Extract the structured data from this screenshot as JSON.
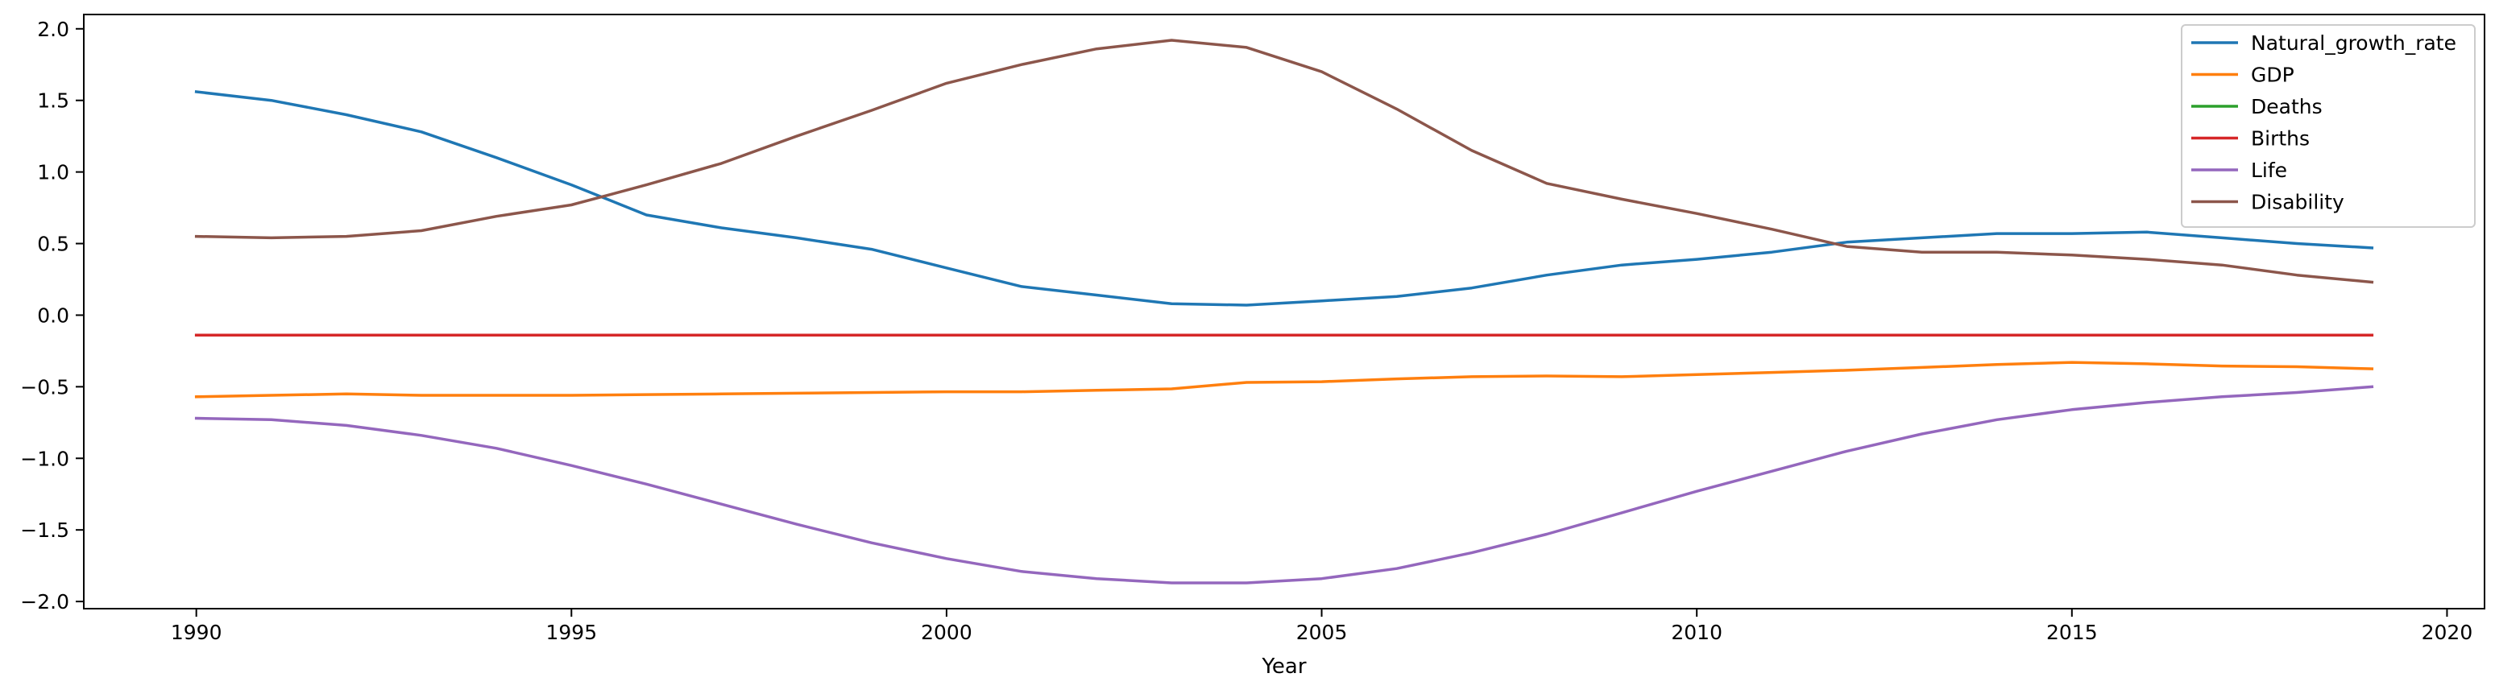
{
  "chart_data": {
    "type": "line",
    "title": "",
    "xlabel": "Year",
    "ylabel": "",
    "xlim": [
      1988.5,
      2020.5
    ],
    "ylim": [
      -2.05,
      2.1
    ],
    "xticks": [
      1990,
      1995,
      2000,
      2005,
      2010,
      2015,
      2020
    ],
    "xtick_labels": [
      "1990",
      "1995",
      "2000",
      "2005",
      "2010",
      "2015",
      "2020"
    ],
    "yticks": [
      -2.0,
      -1.5,
      -1.0,
      -0.5,
      0.0,
      0.5,
      1.0,
      1.5,
      2.0
    ],
    "ytick_labels": [
      "−2.0",
      "−1.5",
      "−1.0",
      "−0.5",
      "0.0",
      "0.5",
      "1.0",
      "1.5",
      "2.0"
    ],
    "grid": false,
    "legend_position": "top-right",
    "x": [
      1990,
      1991,
      1992,
      1993,
      1994,
      1995,
      1996,
      1997,
      1998,
      1999,
      2000,
      2001,
      2002,
      2003,
      2004,
      2005,
      2006,
      2007,
      2008,
      2009,
      2010,
      2011,
      2012,
      2013,
      2014,
      2015,
      2016,
      2017,
      2018,
      2019
    ],
    "series": [
      {
        "name": "Natural_growth_rate",
        "color": "#1f77b4",
        "values": [
          1.56,
          1.5,
          1.4,
          1.28,
          1.1,
          0.91,
          0.7,
          0.61,
          0.54,
          0.46,
          0.33,
          0.2,
          0.14,
          0.08,
          0.07,
          0.1,
          0.13,
          0.19,
          0.28,
          0.35,
          0.39,
          0.44,
          0.51,
          0.54,
          0.57,
          0.57,
          0.58,
          0.54,
          0.5,
          0.47
        ]
      },
      {
        "name": "GDP",
        "color": "#ff7f0e",
        "values": [
          -0.57,
          -0.56,
          -0.55,
          -0.56,
          -0.56,
          -0.56,
          -0.555,
          -0.55,
          -0.545,
          -0.54,
          -0.535,
          -0.535,
          -0.525,
          -0.515,
          -0.47,
          -0.465,
          -0.445,
          -0.43,
          -0.425,
          -0.43,
          -0.415,
          -0.4,
          -0.385,
          -0.365,
          -0.345,
          -0.33,
          -0.34,
          -0.355,
          -0.36,
          -0.375
        ]
      },
      {
        "name": "Deaths",
        "color": "#2ca02c",
        "values": [
          -0.14,
          -0.14,
          -0.14,
          -0.14,
          -0.14,
          -0.14,
          -0.14,
          -0.14,
          -0.14,
          -0.14,
          -0.14,
          -0.14,
          -0.14,
          -0.14,
          -0.14,
          -0.14,
          -0.14,
          -0.14,
          -0.14,
          -0.14,
          -0.14,
          -0.14,
          -0.14,
          -0.14,
          -0.14,
          -0.14,
          -0.14,
          -0.14,
          -0.14,
          -0.14
        ]
      },
      {
        "name": "Births",
        "color": "#d62728",
        "values": [
          -0.14,
          -0.14,
          -0.14,
          -0.14,
          -0.14,
          -0.14,
          -0.14,
          -0.14,
          -0.14,
          -0.14,
          -0.14,
          -0.14,
          -0.14,
          -0.14,
          -0.14,
          -0.14,
          -0.14,
          -0.14,
          -0.14,
          -0.14,
          -0.14,
          -0.14,
          -0.14,
          -0.14,
          -0.14,
          -0.14,
          -0.14,
          -0.14,
          -0.14,
          -0.14
        ]
      },
      {
        "name": "Life",
        "color": "#9467bd",
        "values": [
          -0.72,
          -0.73,
          -0.77,
          -0.84,
          -0.93,
          -1.05,
          -1.18,
          -1.32,
          -1.46,
          -1.59,
          -1.7,
          -1.79,
          -1.84,
          -1.87,
          -1.87,
          -1.84,
          -1.77,
          -1.66,
          -1.53,
          -1.38,
          -1.23,
          -1.09,
          -0.95,
          -0.83,
          -0.73,
          -0.66,
          -0.61,
          -0.57,
          -0.54,
          -0.5
        ]
      },
      {
        "name": "Disability",
        "color": "#8c564b",
        "values": [
          0.55,
          0.54,
          0.55,
          0.59,
          0.69,
          0.77,
          0.91,
          1.06,
          1.25,
          1.43,
          1.62,
          1.75,
          1.86,
          1.92,
          1.87,
          1.7,
          1.44,
          1.15,
          0.92,
          0.81,
          0.71,
          0.6,
          0.48,
          0.44,
          0.44,
          0.42,
          0.39,
          0.35,
          0.28,
          0.23
        ]
      }
    ]
  }
}
